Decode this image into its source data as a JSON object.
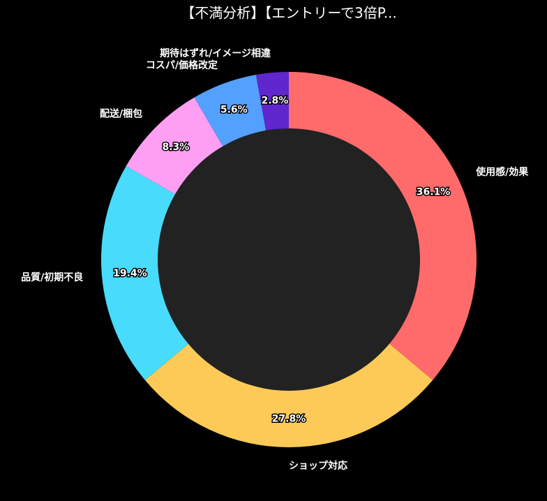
{
  "chart_data": {
    "type": "donut",
    "title": "【不満分析】【エントリーで3倍P...",
    "categories": [
      "使用感/効果",
      "ショップ対応",
      "品質/初期不良",
      "配送/梱包",
      "コスパ/価格改定",
      "期待はずれ/イメージ相違"
    ],
    "values": [
      36.1,
      27.8,
      19.4,
      8.3,
      5.6,
      2.8
    ],
    "value_labels": [
      "36.1%",
      "27.8%",
      "19.4%",
      "8.3%",
      "5.6%",
      "2.8%"
    ],
    "colors": [
      "#ff6b6b",
      "#feca57",
      "#48dbfb",
      "#ff9ff3",
      "#54a0ff",
      "#5f27cd"
    ],
    "center_color": "#222222"
  }
}
